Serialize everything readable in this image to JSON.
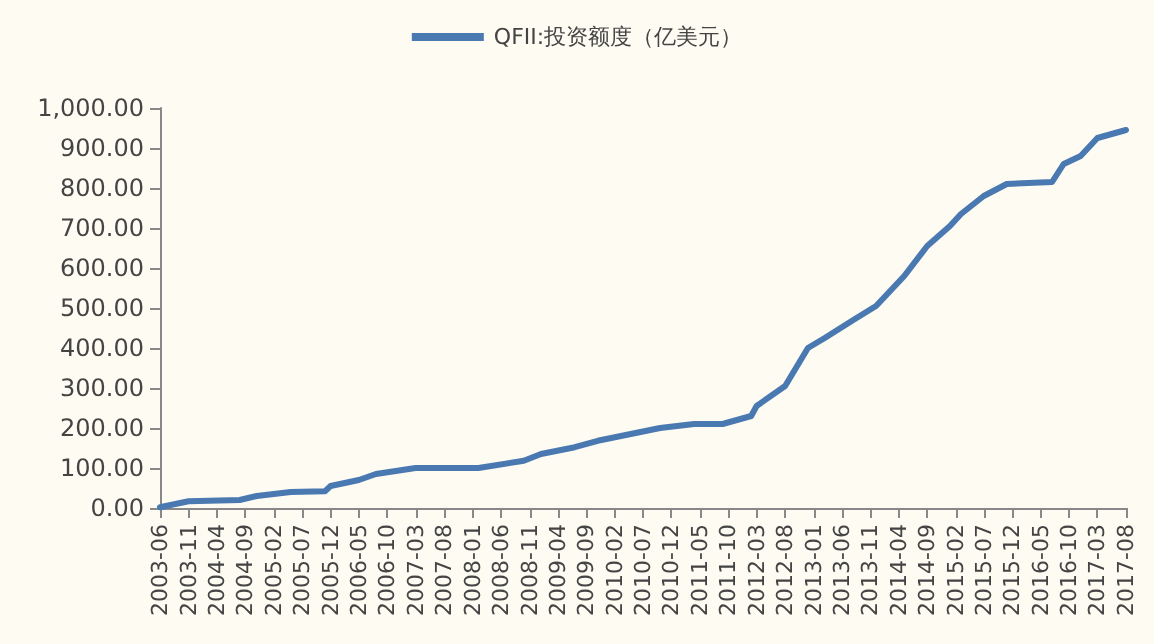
{
  "chart_data": {
    "type": "line",
    "legend": "top",
    "x": [
      "2003-06",
      "2003-11",
      "2004-08",
      "2004-11",
      "2005-05",
      "2005-11",
      "2005-12",
      "2006-05",
      "2006-08",
      "2007-03",
      "2008-02",
      "2008-10",
      "2009-01",
      "2009-07",
      "2009-11",
      "2010-10",
      "2011-04",
      "2011-09",
      "2012-02",
      "2012-03",
      "2012-08",
      "2012-12",
      "2013-03",
      "2013-08",
      "2013-12",
      "2014-05",
      "2014-09",
      "2015-01",
      "2015-03",
      "2015-07",
      "2015-11",
      "2016-07",
      "2016-09",
      "2016-12",
      "2017-03",
      "2017-08"
    ],
    "series": [
      {
        "name": "QFII:投资额度（亿美元）",
        "color": "#4a78b0",
        "values": [
          2,
          17,
          20,
          30,
          40,
          42,
          55,
          70,
          85,
          100,
          100,
          118,
          135,
          152,
          168,
          200,
          210,
          210,
          230,
          255,
          305,
          400,
          425,
          470,
          505,
          580,
          655,
          705,
          735,
          780,
          810,
          815,
          860,
          880,
          925,
          945
        ]
      }
    ],
    "xlim": [
      "2003-06",
      "2017-08"
    ],
    "xticks": [
      "2003-06",
      "2003-11",
      "2004-04",
      "2004-09",
      "2005-02",
      "2005-07",
      "2005-12",
      "2006-05",
      "2006-10",
      "2007-03",
      "2007-08",
      "2008-01",
      "2008-06",
      "2008-11",
      "2009-04",
      "2009-09",
      "2010-02",
      "2010-07",
      "2010-12",
      "2011-05",
      "2011-10",
      "2012-03",
      "2012-08",
      "2013-01",
      "2013-06",
      "2013-11",
      "2014-04",
      "2014-09",
      "2015-02",
      "2015-07",
      "2015-12",
      "2016-05",
      "2016-10",
      "2017-03",
      "2017-08"
    ],
    "ylim": [
      0,
      1000
    ],
    "yticks": [
      {
        "value": 0,
        "label": "0.00"
      },
      {
        "value": 100,
        "label": "100.00"
      },
      {
        "value": 200,
        "label": "200.00"
      },
      {
        "value": 300,
        "label": "300.00"
      },
      {
        "value": 400,
        "label": "400.00"
      },
      {
        "value": 500,
        "label": "500.00"
      },
      {
        "value": 600,
        "label": "600.00"
      },
      {
        "value": 700,
        "label": "700.00"
      },
      {
        "value": 800,
        "label": "800.00"
      },
      {
        "value": 900,
        "label": "900.00"
      },
      {
        "value": 1000,
        "label": "1,000.00"
      }
    ],
    "grid": false,
    "marker": "none",
    "line_style": "solid"
  }
}
